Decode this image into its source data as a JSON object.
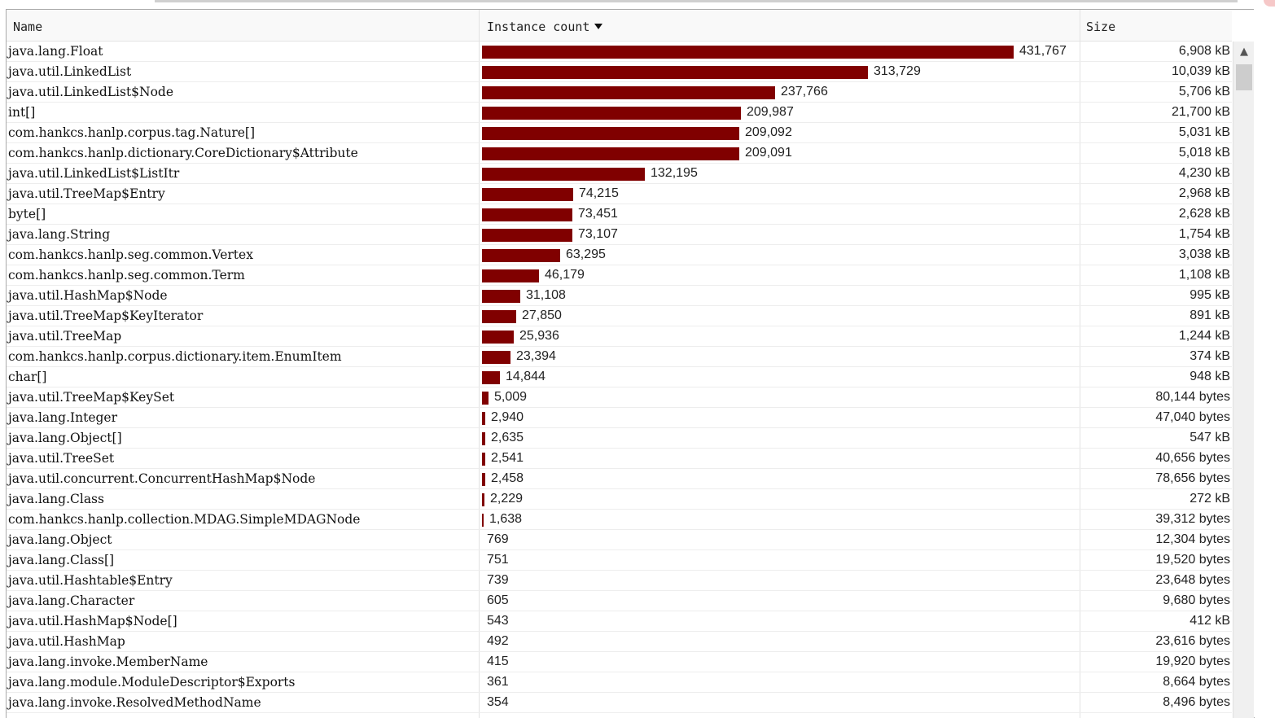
{
  "colors": {
    "bar": "#800000",
    "header_bg": "#f9f9f9",
    "grid": "#ededed"
  },
  "table": {
    "columns": {
      "name": "Name",
      "count": "Instance count",
      "size": "Size"
    },
    "sort_icon": "sort-descending-icon",
    "max_count": 431767,
    "rows": [
      {
        "name": "java.lang.Float",
        "count": 431767,
        "count_label": "431,767",
        "size": "6,908 kB"
      },
      {
        "name": "java.util.LinkedList",
        "count": 313729,
        "count_label": "313,729",
        "size": "10,039 kB"
      },
      {
        "name": "java.util.LinkedList$Node",
        "count": 237766,
        "count_label": "237,766",
        "size": "5,706 kB"
      },
      {
        "name": "int[]",
        "count": 209987,
        "count_label": "209,987",
        "size": "21,700 kB"
      },
      {
        "name": "com.hankcs.hanlp.corpus.tag.Nature[]",
        "count": 209092,
        "count_label": "209,092",
        "size": "5,031 kB"
      },
      {
        "name": "com.hankcs.hanlp.dictionary.CoreDictionary$Attribute",
        "count": 209091,
        "count_label": "209,091",
        "size": "5,018 kB"
      },
      {
        "name": "java.util.LinkedList$ListItr",
        "count": 132195,
        "count_label": "132,195",
        "size": "4,230 kB"
      },
      {
        "name": "java.util.TreeMap$Entry",
        "count": 74215,
        "count_label": "74,215",
        "size": "2,968 kB"
      },
      {
        "name": "byte[]",
        "count": 73451,
        "count_label": "73,451",
        "size": "2,628 kB"
      },
      {
        "name": "java.lang.String",
        "count": 73107,
        "count_label": "73,107",
        "size": "1,754 kB"
      },
      {
        "name": "com.hankcs.hanlp.seg.common.Vertex",
        "count": 63295,
        "count_label": "63,295",
        "size": "3,038 kB"
      },
      {
        "name": "com.hankcs.hanlp.seg.common.Term",
        "count": 46179,
        "count_label": "46,179",
        "size": "1,108 kB"
      },
      {
        "name": "java.util.HashMap$Node",
        "count": 31108,
        "count_label": "31,108",
        "size": "995 kB"
      },
      {
        "name": "java.util.TreeMap$KeyIterator",
        "count": 27850,
        "count_label": "27,850",
        "size": "891 kB"
      },
      {
        "name": "java.util.TreeMap",
        "count": 25936,
        "count_label": "25,936",
        "size": "1,244 kB"
      },
      {
        "name": "com.hankcs.hanlp.corpus.dictionary.item.EnumItem",
        "count": 23394,
        "count_label": "23,394",
        "size": "374 kB"
      },
      {
        "name": "char[]",
        "count": 14844,
        "count_label": "14,844",
        "size": "948 kB"
      },
      {
        "name": "java.util.TreeMap$KeySet",
        "count": 5009,
        "count_label": "5,009",
        "size": "80,144 bytes"
      },
      {
        "name": "java.lang.Integer",
        "count": 2940,
        "count_label": "2,940",
        "size": "47,040 bytes"
      },
      {
        "name": "java.lang.Object[]",
        "count": 2635,
        "count_label": "2,635",
        "size": "547 kB"
      },
      {
        "name": "java.util.TreeSet",
        "count": 2541,
        "count_label": "2,541",
        "size": "40,656 bytes"
      },
      {
        "name": "java.util.concurrent.ConcurrentHashMap$Node",
        "count": 2458,
        "count_label": "2,458",
        "size": "78,656 bytes"
      },
      {
        "name": "java.lang.Class",
        "count": 2229,
        "count_label": "2,229",
        "size": "272 kB"
      },
      {
        "name": "com.hankcs.hanlp.collection.MDAG.SimpleMDAGNode",
        "count": 1638,
        "count_label": "1,638",
        "size": "39,312 bytes"
      },
      {
        "name": "java.lang.Object",
        "count": 769,
        "count_label": "769",
        "size": "12,304 bytes"
      },
      {
        "name": "java.lang.Class[]",
        "count": 751,
        "count_label": "751",
        "size": "19,520 bytes"
      },
      {
        "name": "java.util.Hashtable$Entry",
        "count": 739,
        "count_label": "739",
        "size": "23,648 bytes"
      },
      {
        "name": "java.lang.Character",
        "count": 605,
        "count_label": "605",
        "size": "9,680 bytes"
      },
      {
        "name": "java.util.HashMap$Node[]",
        "count": 543,
        "count_label": "543",
        "size": "412 kB"
      },
      {
        "name": "java.util.HashMap",
        "count": 492,
        "count_label": "492",
        "size": "23,616 bytes"
      },
      {
        "name": "java.lang.invoke.MemberName",
        "count": 415,
        "count_label": "415",
        "size": "19,920 bytes"
      },
      {
        "name": "java.lang.module.ModuleDescriptor$Exports",
        "count": 361,
        "count_label": "361",
        "size": "8,664 bytes"
      },
      {
        "name": "java.lang.invoke.ResolvedMethodName",
        "count": 354,
        "count_label": "354",
        "size": "8,496 bytes"
      }
    ]
  },
  "scrollbar": {
    "up_icon": "scroll-up-arrow-icon"
  }
}
